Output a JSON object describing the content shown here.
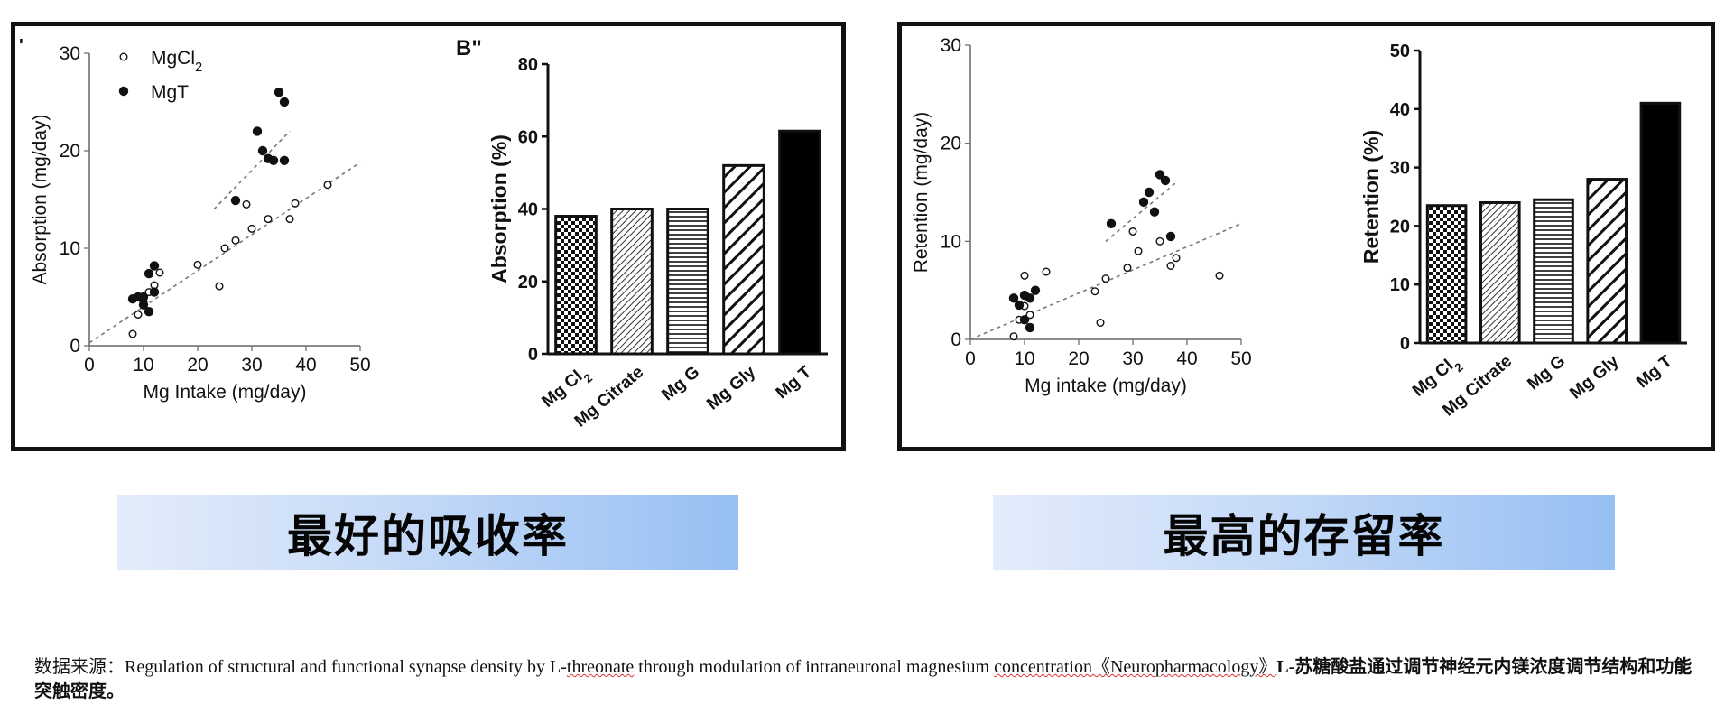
{
  "chart_data": [
    {
      "type": "scatter",
      "panel": "left",
      "panel_label": "'",
      "xlabel": "Mg Intake (mg/day)",
      "ylabel": "Absorption (mg/day)",
      "xlim": [
        0,
        50
      ],
      "ylim": [
        0,
        30
      ],
      "xticks": [
        0,
        10,
        20,
        30,
        40,
        50
      ],
      "yticks": [
        0,
        10,
        20,
        30
      ],
      "legend_position": "top-left",
      "series": [
        {
          "name": "MgCl",
          "name_sub": "2",
          "marker": "open",
          "points": [
            [
              8,
              1.2
            ],
            [
              9,
              3.2
            ],
            [
              10,
              4.5
            ],
            [
              11,
              5.5
            ],
            [
              12,
              6.2
            ],
            [
              13,
              7.5
            ],
            [
              20,
              8.3
            ],
            [
              24,
              6.1
            ],
            [
              25,
              10
            ],
            [
              27,
              10.8
            ],
            [
              30,
              12
            ],
            [
              33,
              13
            ],
            [
              37,
              13
            ],
            [
              38,
              14.6
            ],
            [
              44,
              16.5
            ],
            [
              29,
              14.5
            ]
          ]
        },
        {
          "name": "MgT",
          "marker": "filled",
          "points": [
            [
              8,
              4.8
            ],
            [
              9,
              5
            ],
            [
              10,
              5
            ],
            [
              10,
              4.2
            ],
            [
              11,
              3.5
            ],
            [
              11,
              7.4
            ],
            [
              12,
              5.5
            ],
            [
              12,
              8.2
            ],
            [
              27,
              14.9
            ],
            [
              31,
              22
            ],
            [
              32,
              20
            ],
            [
              33,
              19.2
            ],
            [
              34,
              19
            ],
            [
              35,
              26
            ],
            [
              36,
              25
            ],
            [
              36,
              19
            ]
          ]
        }
      ],
      "fit_lines": [
        {
          "series": "MgCl2",
          "x": [
            0,
            50
          ],
          "y": [
            0.3,
            18.8
          ]
        },
        {
          "series": "MgT",
          "x": [
            23,
            37
          ],
          "y": [
            14,
            22
          ]
        }
      ]
    },
    {
      "type": "bar",
      "panel": "left",
      "panel_label": "B\"",
      "categories": [
        "Mg Cl",
        "Mg Citrate",
        "Mg G",
        "Mg Gly",
        "Mg T"
      ],
      "category_subs": [
        "2",
        "",
        "",
        "",
        ""
      ],
      "values": [
        38,
        40,
        40,
        52,
        61.5
      ],
      "patterns": [
        "checker",
        "diag-fine",
        "horizontal",
        "diag-thick",
        "solid"
      ],
      "ylabel": "Absorption (%)",
      "ylim": [
        0,
        80
      ],
      "yticks": [
        0,
        20,
        40,
        60,
        80
      ]
    },
    {
      "type": "scatter",
      "panel": "right",
      "xlabel": "Mg intake (mg/day)",
      "ylabel": "Retention (mg/day)",
      "xlim": [
        0,
        50
      ],
      "ylim": [
        0,
        30
      ],
      "xticks": [
        0,
        10,
        20,
        30,
        40,
        50
      ],
      "yticks": [
        0,
        10,
        20,
        30
      ],
      "series": [
        {
          "name": "MgCl2",
          "marker": "open",
          "points": [
            [
              8,
              0.3
            ],
            [
              9,
              2
            ],
            [
              10,
              3.4
            ],
            [
              10,
              6.5
            ],
            [
              11,
              2.5
            ],
            [
              14,
              6.9
            ],
            [
              23,
              4.9
            ],
            [
              24,
              1.7
            ],
            [
              25,
              6.2
            ],
            [
              29,
              7.3
            ],
            [
              30,
              11
            ],
            [
              31,
              9
            ],
            [
              35,
              10
            ],
            [
              37,
              7.5
            ],
            [
              38,
              8.3
            ],
            [
              46,
              6.5
            ]
          ]
        },
        {
          "name": "MgT",
          "marker": "filled",
          "points": [
            [
              8,
              4.2
            ],
            [
              9,
              3.5
            ],
            [
              10,
              2
            ],
            [
              10,
              4.5
            ],
            [
              11,
              1.2
            ],
            [
              11,
              4.2
            ],
            [
              12,
              5
            ],
            [
              26,
              11.8
            ],
            [
              32,
              14
            ],
            [
              33,
              15
            ],
            [
              34,
              13
            ],
            [
              35,
              16.8
            ],
            [
              36,
              16.2
            ],
            [
              37,
              10.5
            ]
          ]
        }
      ],
      "fit_lines": [
        {
          "series": "MgCl2",
          "x": [
            0,
            50
          ],
          "y": [
            0,
            11.8
          ]
        },
        {
          "series": "MgT",
          "x": [
            25,
            38
          ],
          "y": [
            10,
            16
          ]
        }
      ]
    },
    {
      "type": "bar",
      "panel": "right",
      "categories": [
        "Mg Cl",
        "Mg Citrate",
        "Mg G",
        "Mg Gly",
        "Mg T"
      ],
      "category_subs": [
        "2",
        "",
        "",
        "",
        ""
      ],
      "values": [
        23.5,
        24,
        24.5,
        28,
        41
      ],
      "patterns": [
        "checker",
        "diag-fine",
        "horizontal",
        "diag-thick",
        "solid"
      ],
      "ylabel": "Retention (%)",
      "ylim": [
        0,
        50
      ],
      "yticks": [
        0,
        10,
        20,
        30,
        40,
        50
      ]
    }
  ],
  "banners": {
    "left": "最好的吸收率",
    "right": "最高的存留率"
  },
  "source": {
    "prefix": "数据来源：Regulation of structural and functional synapse density by L-",
    "word1": "threonate",
    "middle": " through modulation of intraneuronal magnesium ",
    "word2": "concentration《Neuropharmacology》",
    "suffix": "L-苏糖酸盐通过调节神经元内镁浓度调节结构和功能突触密度。"
  },
  "colors": {
    "frame": "#111111",
    "marker": "#111111",
    "banner_start": "#e3ecfa",
    "banner_end": "#96bff2"
  }
}
